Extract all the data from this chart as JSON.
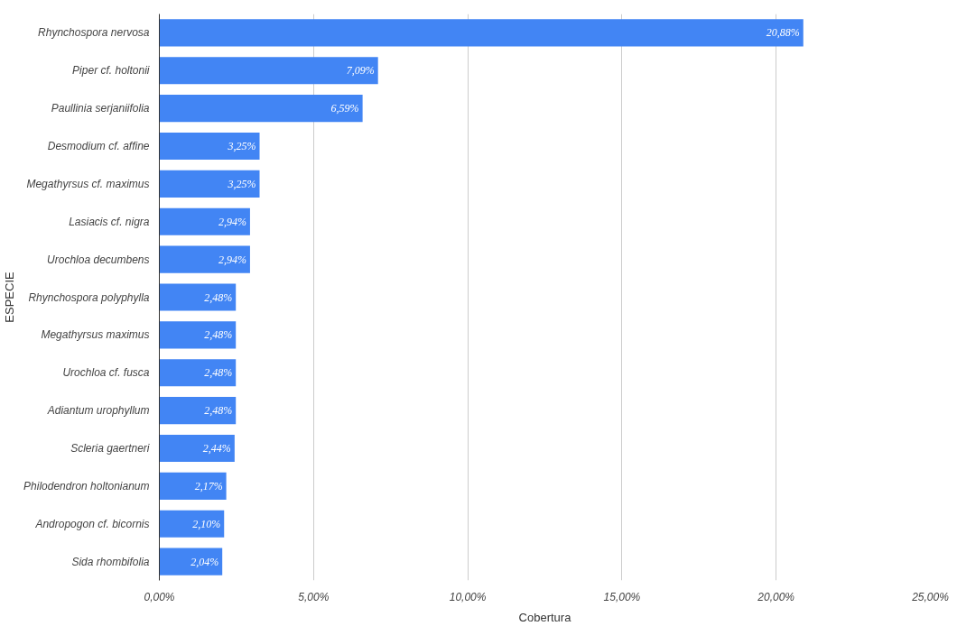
{
  "chart_data": {
    "type": "bar",
    "orientation": "horizontal",
    "xlabel": "Cobertura",
    "ylabel": "ESPECIE",
    "categories": [
      "Rhynchospora nervosa",
      "Piper cf. holtonii",
      "Paullinia serjaniifolia",
      "Desmodium cf. affine",
      "Megathyrsus cf. maximus",
      "Lasiacis cf. nigra",
      "Urochloa decumbens",
      "Rhynchospora polyphylla",
      "Megathyrsus maximus",
      "Urochloa cf. fusca",
      "Adiantum urophyllum",
      "Scleria gaertneri",
      "Philodendron holtonianum",
      "Andropogon cf. bicornis",
      "Sida rhombifolia"
    ],
    "values": [
      20.88,
      7.09,
      6.59,
      3.25,
      3.25,
      2.94,
      2.94,
      2.48,
      2.48,
      2.48,
      2.48,
      2.44,
      2.17,
      2.1,
      2.04
    ],
    "value_labels": [
      "20,88%",
      "7,09%",
      "6,59%",
      "3,25%",
      "3,25%",
      "2,94%",
      "2,94%",
      "2,48%",
      "2,48%",
      "2,48%",
      "2,48%",
      "2,44%",
      "2,17%",
      "2,10%",
      "2,04%"
    ],
    "color": "#4285f4",
    "xlim": [
      0,
      25
    ],
    "xticks": [
      {
        "value": 0,
        "label": "0,00%"
      },
      {
        "value": 5,
        "label": "5,00%"
      },
      {
        "value": 10,
        "label": "10,00%"
      },
      {
        "value": 15,
        "label": "15,00%"
      },
      {
        "value": 20,
        "label": "20,00%"
      },
      {
        "value": 25,
        "label": "25,00%"
      }
    ],
    "grid": "x"
  }
}
